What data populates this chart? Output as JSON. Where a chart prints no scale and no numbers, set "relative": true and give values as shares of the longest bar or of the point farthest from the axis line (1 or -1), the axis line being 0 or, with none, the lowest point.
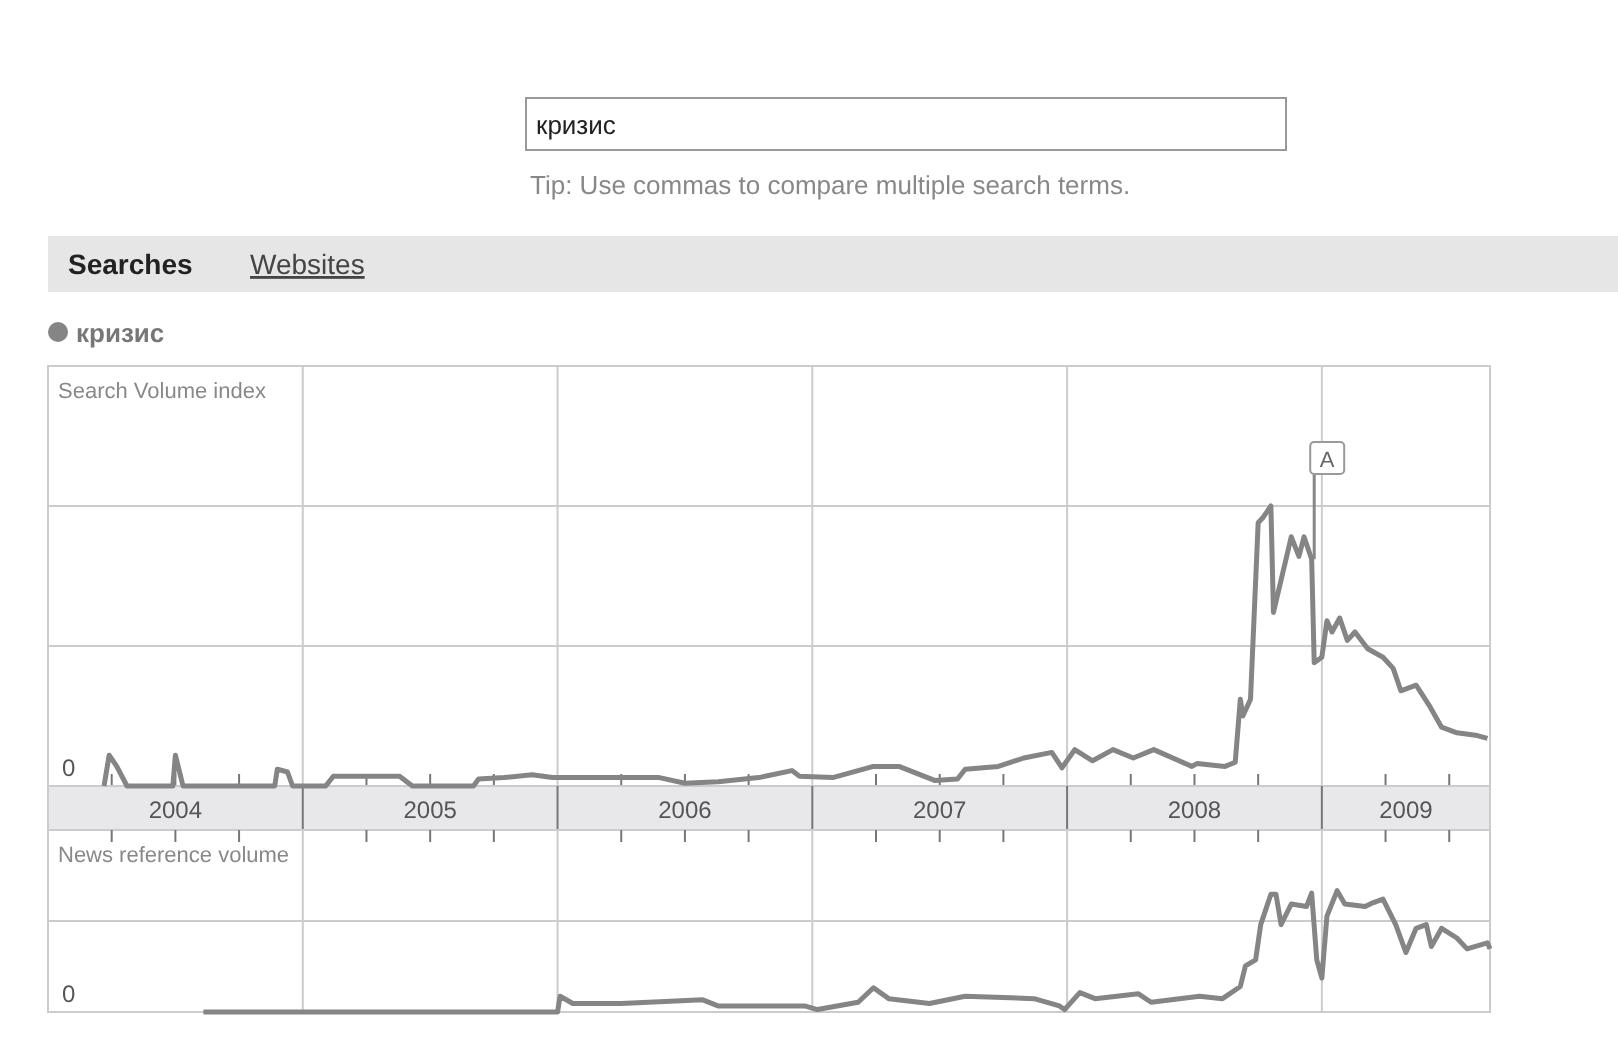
{
  "chart_data": [
    {
      "type": "other",
      "annotations": [
        "кризис",
        "Tip: Use commas to compare multiple search terms.",
        "Searches",
        "Websites"
      ]
    },
    {
      "type": "line",
      "ylabel": "Search Volume index",
      "relative": true,
      "grid": true,
      "legend": "top left",
      "xlim": [
        2004,
        2009.66
      ],
      "xticks": [
        {
          "value": 2004.5,
          "label": "2004"
        },
        {
          "value": 2005.5,
          "label": "2005"
        },
        {
          "value": 2006.5,
          "label": "2006"
        },
        {
          "value": 2007.5,
          "label": "2007"
        },
        {
          "value": 2008.5,
          "label": "2008"
        },
        {
          "value": 2009.33,
          "label": "2009"
        }
      ],
      "annotations": [
        "0",
        {
          "text": "A",
          "x": 2008.97,
          "y": 0.81
        }
      ],
      "series": [
        {
          "name": "кризис",
          "color": "#858585",
          "x": [
            2004.22,
            2004.24,
            2004.27,
            2004.31,
            2004.49,
            2004.5,
            2004.53,
            2004.89,
            2004.9,
            2004.94,
            2004.96,
            2005.09,
            2005.12,
            2005.38,
            2005.43,
            2005.67,
            2005.69,
            2005.79,
            2005.9,
            2005.98,
            2006.3,
            2006.4,
            2006.5,
            2006.63,
            2006.79,
            2006.92,
            2006.95,
            2007.08,
            2007.24,
            2007.34,
            2007.48,
            2007.57,
            2007.6,
            2007.73,
            2007.83,
            2007.94,
            2007.98,
            2008.03,
            2008.1,
            2008.18,
            2008.26,
            2008.34,
            2008.49,
            2008.51,
            2008.62,
            2008.66,
            2008.68,
            2008.69,
            2008.72,
            2008.75,
            2008.77,
            2008.8,
            2008.81,
            2008.88,
            2008.91,
            2008.93,
            2008.96,
            2008.97,
            2009.0,
            2009.02,
            2009.04,
            2009.07,
            2009.1,
            2009.13,
            2009.18,
            2009.24,
            2009.28,
            2009.31,
            2009.37,
            2009.42,
            2009.47,
            2009.53,
            2009.61,
            2009.65
          ],
          "values": [
            0,
            0.11,
            0.07,
            0,
            0,
            0.11,
            0,
            0,
            0.06,
            0.05,
            0,
            0,
            0.035,
            0.035,
            0,
            0,
            0.025,
            0.03,
            0.04,
            0.03,
            0.03,
            0.03,
            0.01,
            0.015,
            0.03,
            0.055,
            0.035,
            0.03,
            0.07,
            0.07,
            0.02,
            0.025,
            0.06,
            0.07,
            0.1,
            0.12,
            0.065,
            0.13,
            0.09,
            0.13,
            0.1,
            0.13,
            0.07,
            0.08,
            0.07,
            0.085,
            0.31,
            0.25,
            0.31,
            0.94,
            0.96,
            1.0,
            0.62,
            0.89,
            0.82,
            0.89,
            0.81,
            0.44,
            0.46,
            0.59,
            0.55,
            0.6,
            0.52,
            0.55,
            0.49,
            0.46,
            0.42,
            0.34,
            0.36,
            0.29,
            0.21,
            0.19,
            0.18,
            0.17
          ]
        }
      ]
    },
    {
      "type": "line",
      "ylabel": "News reference volume",
      "relative": true,
      "grid": true,
      "xlim": [
        2004,
        2009.66
      ],
      "annotations": [
        "0"
      ],
      "series": [
        {
          "color": "#858585",
          "x": [
            2004.61,
            2006.0,
            2006.01,
            2006.06,
            2006.25,
            2006.57,
            2006.63,
            2006.97,
            2007.02,
            2007.18,
            2007.24,
            2007.3,
            2007.46,
            2007.6,
            2007.87,
            2007.97,
            2007.99,
            2008.05,
            2008.11,
            2008.28,
            2008.33,
            2008.52,
            2008.61,
            2008.68,
            2008.7,
            2008.74,
            2008.76,
            2008.8,
            2008.82,
            2008.84,
            2008.88,
            2008.94,
            2008.96,
            2008.98,
            2009.0,
            2009.02,
            2009.06,
            2009.09,
            2009.17,
            2009.2,
            2009.24,
            2009.29,
            2009.33,
            2009.37,
            2009.41,
            2009.43,
            2009.47,
            2009.53,
            2009.57,
            2009.65,
            2009.66
          ],
          "values": [
            0,
            0,
            0.13,
            0.07,
            0.07,
            0.1,
            0.05,
            0.05,
            0.02,
            0.08,
            0.2,
            0.11,
            0.07,
            0.13,
            0.11,
            0.05,
            0.02,
            0.16,
            0.11,
            0.15,
            0.08,
            0.13,
            0.11,
            0.21,
            0.38,
            0.43,
            0.72,
            0.97,
            0.97,
            0.72,
            0.89,
            0.87,
            0.98,
            0.43,
            0.28,
            0.79,
            1.0,
            0.89,
            0.87,
            0.9,
            0.93,
            0.72,
            0.49,
            0.69,
            0.72,
            0.54,
            0.69,
            0.61,
            0.52,
            0.57,
            0.52
          ]
        }
      ]
    }
  ]
}
